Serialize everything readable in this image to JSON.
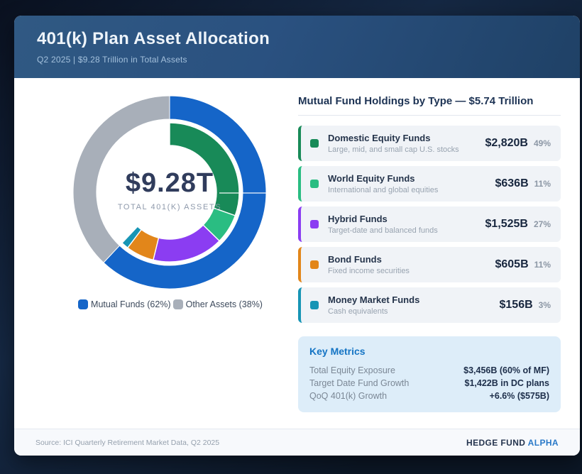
{
  "header": {
    "title": "401(k) Plan Asset Allocation",
    "subtitle": "Q2 2025 | $9.28 Trillion in Total Assets"
  },
  "chart_data": {
    "type": "pie",
    "variant": "two-ring donut",
    "title": "401(k) Plan Asset Allocation",
    "center": {
      "value": "$9.28T",
      "label": "TOTAL 401(K) ASSETS"
    },
    "total_trillions": 9.28,
    "outer_ring": {
      "series": [
        {
          "name": "Mutual Funds",
          "pct": 62,
          "color": "#1565c8"
        },
        {
          "name": "Other Assets",
          "pct": 38,
          "color": "#a8afb9"
        }
      ]
    },
    "inner_ring": {
      "note": "Mutual fund breakdown; spans the 62% Mutual Funds share of the circle",
      "series": [
        {
          "name": "Domestic Equity Funds",
          "value_billions": 2820,
          "pct_of_mutual_funds": 49,
          "color": "#188a58"
        },
        {
          "name": "World Equity Funds",
          "value_billions": 636,
          "pct_of_mutual_funds": 11,
          "color": "#2abd82"
        },
        {
          "name": "Hybrid Funds",
          "value_billions": 1525,
          "pct_of_mutual_funds": 27,
          "color": "#8b3df2"
        },
        {
          "name": "Bond Funds",
          "value_billions": 605,
          "pct_of_mutual_funds": 11,
          "color": "#e2861a"
        },
        {
          "name": "Money Market Funds",
          "value_billions": 156,
          "pct_of_mutual_funds": 3,
          "color": "#1795b5"
        }
      ]
    },
    "legend": [
      {
        "label": "Mutual Funds (62%)",
        "color": "#1565c8"
      },
      {
        "label": "Other Assets (38%)",
        "color": "#a8afb9"
      }
    ]
  },
  "holdings_panel": {
    "heading": "Mutual Fund Holdings by Type — $5.74 Trillion",
    "items": [
      {
        "title": "Domestic Equity Funds",
        "subtitle": "Large, mid, and small cap U.S. stocks",
        "value": "$2,820B",
        "pct": "49%",
        "color": "#188a58"
      },
      {
        "title": "World Equity Funds",
        "subtitle": "International and global equities",
        "value": "$636B",
        "pct": "11%",
        "color": "#2abd82"
      },
      {
        "title": "Hybrid Funds",
        "subtitle": "Target-date and balanced funds",
        "value": "$1,525B",
        "pct": "27%",
        "color": "#8b3df2"
      },
      {
        "title": "Bond Funds",
        "subtitle": "Fixed income securities",
        "value": "$605B",
        "pct": "11%",
        "color": "#e2861a"
      },
      {
        "title": "Money Market Funds",
        "subtitle": "Cash equivalents",
        "value": "$156B",
        "pct": "3%",
        "color": "#1795b5"
      }
    ]
  },
  "key_metrics": {
    "title": "Key Metrics",
    "rows": [
      {
        "label": "Total Equity Exposure",
        "value": "$3,456B (60% of MF)"
      },
      {
        "label": "Target Date Fund Growth",
        "value": "$1,422B in DC plans"
      },
      {
        "label": "QoQ 401(k) Growth",
        "value": "+6.6% ($575B)"
      }
    ]
  },
  "footer": {
    "source": "Source: ICI Quarterly Retirement Market Data, Q2 2025",
    "brand": "HEDGE FUND",
    "brand_accent": "ALPHA"
  }
}
